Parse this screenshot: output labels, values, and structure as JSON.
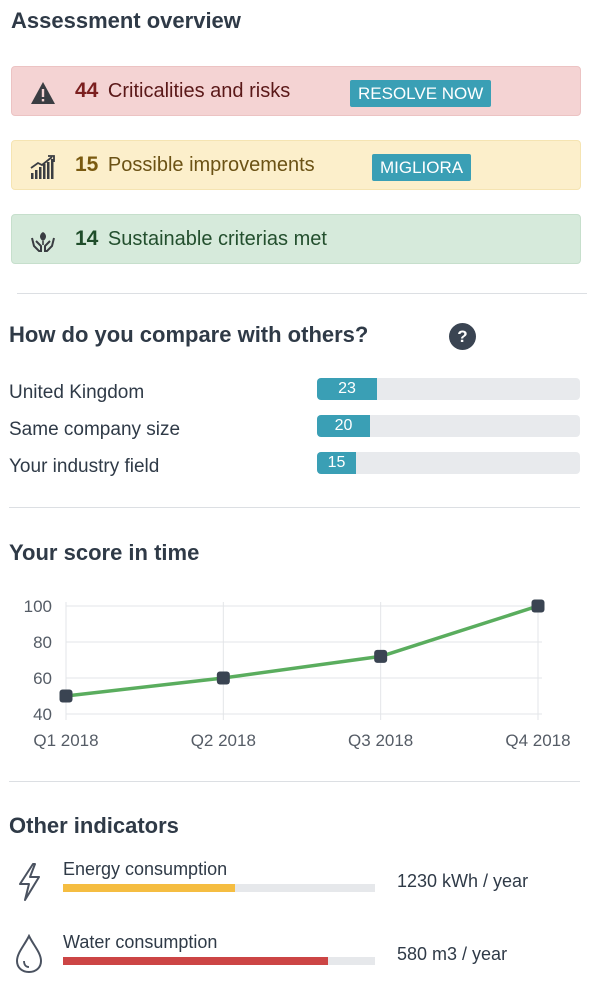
{
  "overview": {
    "title": "Assessment overview",
    "alerts": [
      {
        "count": "44",
        "label": "Criticalities and risks",
        "button": "RESOLVE NOW",
        "icon": "warning-icon"
      },
      {
        "count": "15",
        "label": "Possible improvements",
        "button": "MIGLIORA",
        "icon": "growth-chart-icon"
      },
      {
        "count": "14",
        "label": "Sustainable criterias met",
        "icon": "hands-plant-icon"
      }
    ]
  },
  "compare": {
    "title": "How do you compare with others?",
    "help": "?",
    "rows": [
      {
        "label": "United Kingdom",
        "value": "23",
        "fraction": 0.23
      },
      {
        "label": "Same company size",
        "value": "20",
        "fraction": 0.2
      },
      {
        "label": "Your industry field",
        "value": "15",
        "fraction": 0.15
      }
    ]
  },
  "score": {
    "title": "Your score in time",
    "chart_data": {
      "type": "line",
      "categories": [
        "Q1 2018",
        "Q2 2018",
        "Q3 2018",
        "Q4 2018"
      ],
      "values": [
        50,
        60,
        72,
        100
      ],
      "y_ticks": [
        "100",
        "80",
        "60",
        "40"
      ],
      "ylim": [
        40,
        100
      ],
      "grid": true,
      "line_color": "#5aad5e",
      "marker_color": "#3a4452"
    }
  },
  "indicators": {
    "title": "Other indicators",
    "items": [
      {
        "label": "Energy consumption",
        "value": "1230 kWh / year",
        "fraction": 0.55,
        "color": "#f5bd41",
        "icon": "lightning-icon"
      },
      {
        "label": "Water consumption",
        "value": "580 m3 / year",
        "fraction": 0.85,
        "color": "#cc4545",
        "icon": "water-drop-icon"
      }
    ]
  }
}
